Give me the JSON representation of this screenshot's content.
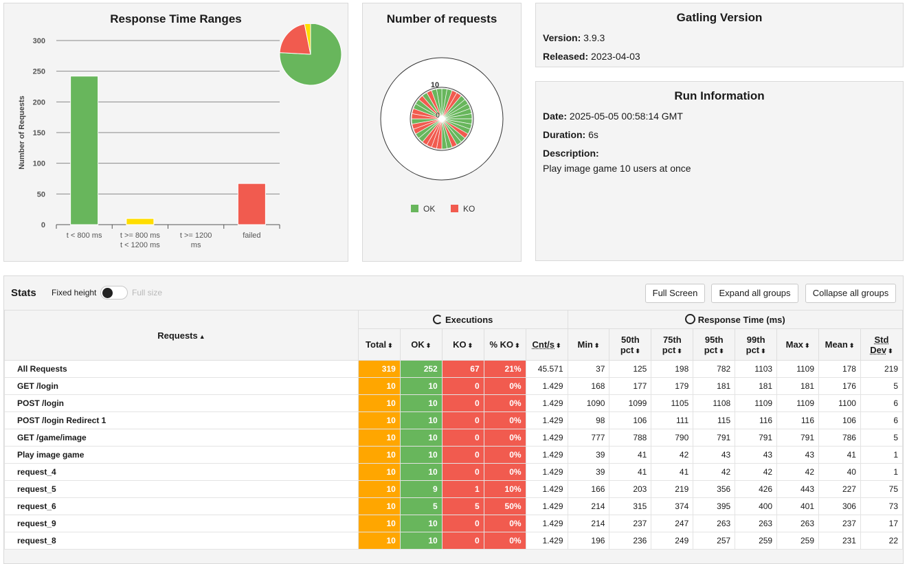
{
  "response_time_ranges": {
    "title": "Response Time Ranges",
    "chart_data": {
      "type": "bar",
      "title": "Response Time Ranges",
      "ylabel": "Number of Requests",
      "ylim": [
        0,
        300
      ],
      "yticks": [
        "0",
        "50",
        "100",
        "150",
        "200",
        "250",
        "300"
      ],
      "categories": [
        [
          "t < 800 ms"
        ],
        [
          "t >= 800 ms",
          "t < 1200 ms"
        ],
        [
          "t >= 1200",
          "ms"
        ],
        [
          "failed"
        ]
      ],
      "values": [
        242,
        10,
        0,
        67
      ],
      "colors": [
        "#68b65c",
        "#ffdd00",
        "#68b65c",
        "#f15b4f"
      ],
      "pie": [
        {
          "label": "t < 800 ms",
          "value": 242,
          "color": "#68b65c"
        },
        {
          "label": "failed",
          "value": 67,
          "color": "#f15b4f"
        },
        {
          "label": "t >= 800 ms",
          "value": 10,
          "color": "#ffdd00"
        }
      ]
    }
  },
  "number_of_requests": {
    "title": "Number of requests",
    "chart_data": {
      "type": "pie",
      "title": "Number of requests",
      "scale_labels": [
        "10",
        "0"
      ],
      "legend": [
        {
          "label": "OK",
          "color": "#68b65c"
        },
        {
          "label": "KO",
          "color": "#f15b4f"
        }
      ]
    }
  },
  "gatling_version": {
    "title": "Gatling Version",
    "version_label": "Version:",
    "version": "3.9.3",
    "released_label": "Released:",
    "released": "2023-04-03"
  },
  "run_information": {
    "title": "Run Information",
    "date_label": "Date:",
    "date": "2025-05-05 00:58:14 GMT",
    "duration_label": "Duration:",
    "duration": "6s",
    "description_label": "Description:",
    "description": "Play image game 10 users at once"
  },
  "stats": {
    "title": "Stats",
    "fixed_height": "Fixed height",
    "full_size": "Full size",
    "buttons": {
      "full_screen": "Full Screen",
      "expand_all": "Expand all groups",
      "collapse_all": "Collapse all groups"
    },
    "group_headers": {
      "requests": "Requests",
      "executions": "Executions",
      "response_time": "Response Time (ms)"
    },
    "columns": {
      "total": "Total",
      "ok": "OK",
      "ko": "KO",
      "pko": "% KO",
      "cnts": "Cnt/s",
      "min": "Min",
      "p50a": "50th",
      "p50b": "pct",
      "p75a": "75th",
      "p75b": "pct",
      "p95a": "95th",
      "p95b": "pct",
      "p99a": "99th",
      "p99b": "pct",
      "max": "Max",
      "mean": "Mean",
      "stda": "Std",
      "stdb": "Dev"
    },
    "rows": [
      [
        "All Requests",
        "319",
        "252",
        "67",
        "21%",
        "45.571",
        "37",
        "125",
        "198",
        "782",
        "1103",
        "1109",
        "178",
        "219"
      ],
      [
        "GET /login",
        "10",
        "10",
        "0",
        "0%",
        "1.429",
        "168",
        "177",
        "179",
        "181",
        "181",
        "181",
        "176",
        "5"
      ],
      [
        "POST /login",
        "10",
        "10",
        "0",
        "0%",
        "1.429",
        "1090",
        "1099",
        "1105",
        "1108",
        "1109",
        "1109",
        "1100",
        "6"
      ],
      [
        "POST /login Redirect 1",
        "10",
        "10",
        "0",
        "0%",
        "1.429",
        "98",
        "106",
        "111",
        "115",
        "116",
        "116",
        "106",
        "6"
      ],
      [
        "GET /game/image",
        "10",
        "10",
        "0",
        "0%",
        "1.429",
        "777",
        "788",
        "790",
        "791",
        "791",
        "791",
        "786",
        "5"
      ],
      [
        "Play image game",
        "10",
        "10",
        "0",
        "0%",
        "1.429",
        "39",
        "41",
        "42",
        "43",
        "43",
        "43",
        "41",
        "1"
      ],
      [
        "request_4",
        "10",
        "10",
        "0",
        "0%",
        "1.429",
        "39",
        "41",
        "41",
        "42",
        "42",
        "42",
        "40",
        "1"
      ],
      [
        "request_5",
        "10",
        "9",
        "1",
        "10%",
        "1.429",
        "166",
        "203",
        "219",
        "356",
        "426",
        "443",
        "227",
        "75"
      ],
      [
        "request_6",
        "10",
        "5",
        "5",
        "50%",
        "1.429",
        "214",
        "315",
        "374",
        "395",
        "400",
        "401",
        "306",
        "73"
      ],
      [
        "request_9",
        "10",
        "10",
        "0",
        "0%",
        "1.429",
        "214",
        "237",
        "247",
        "263",
        "263",
        "263",
        "237",
        "17"
      ],
      [
        "request_8",
        "10",
        "10",
        "0",
        "0%",
        "1.429",
        "196",
        "236",
        "249",
        "257",
        "259",
        "259",
        "231",
        "22"
      ]
    ]
  }
}
